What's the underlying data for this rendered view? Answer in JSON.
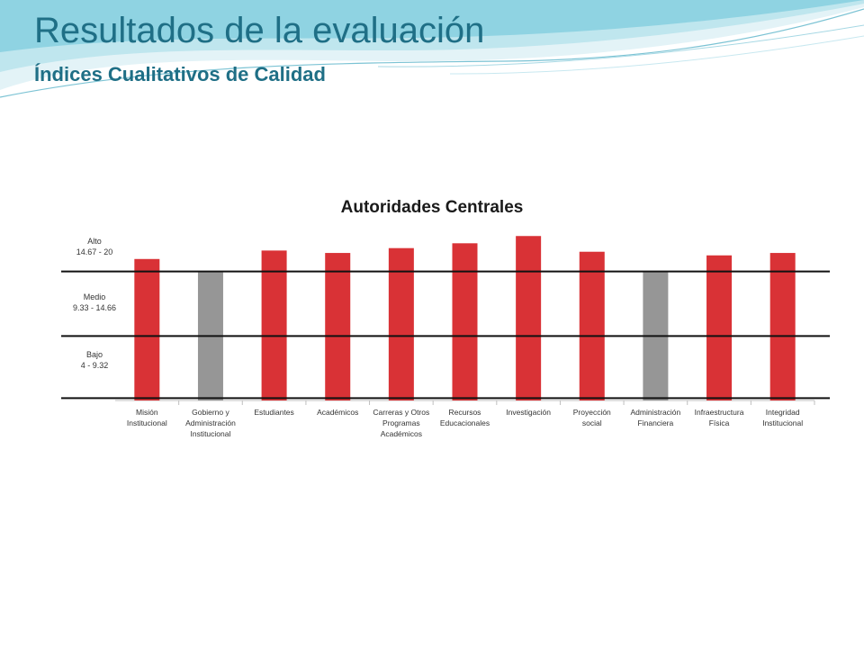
{
  "slide": {
    "title": "Resultados de la evaluación",
    "subtitle": "Índices Cualitativos de Calidad"
  },
  "colors": {
    "accent": "#1f6f86",
    "alto": "#d93236",
    "medio": "#969696"
  },
  "chart_data": {
    "type": "bar",
    "title": "Autoridades Centrales",
    "xlabel": "",
    "ylabel": "",
    "ylim": [
      4,
      20
    ],
    "grid": false,
    "legend": "none",
    "levels": [
      {
        "name": "Alto",
        "range": "14.67 - 20"
      },
      {
        "name": "Medio",
        "range": "9.33 - 14.66"
      },
      {
        "name": "Bajo",
        "range": "4 - 9.32"
      }
    ],
    "thresholds": [
      9.33,
      14.67
    ],
    "categories": [
      [
        "Misión",
        "Institucional"
      ],
      [
        "Gobierno y",
        "Administración",
        "Institucional"
      ],
      [
        "Estudiantes"
      ],
      [
        "Académicos"
      ],
      [
        "Carreras y Otros",
        "Programas",
        "Académicos"
      ],
      [
        "Recursos",
        "Educacionales"
      ],
      [
        "Investigación"
      ],
      [
        "Proyección",
        "social"
      ],
      [
        "Administración",
        "Financiera"
      ],
      [
        "Infraestructura",
        "Física"
      ],
      [
        "Integridad",
        "Institucional"
      ]
    ],
    "values": [
      15.7,
      14.6,
      16.4,
      16.2,
      16.6,
      17.0,
      17.6,
      16.3,
      14.6,
      16.0,
      16.2
    ],
    "bar_levels": [
      "Alto",
      "Medio",
      "Alto",
      "Alto",
      "Alto",
      "Alto",
      "Alto",
      "Alto",
      "Medio",
      "Alto",
      "Alto"
    ]
  }
}
